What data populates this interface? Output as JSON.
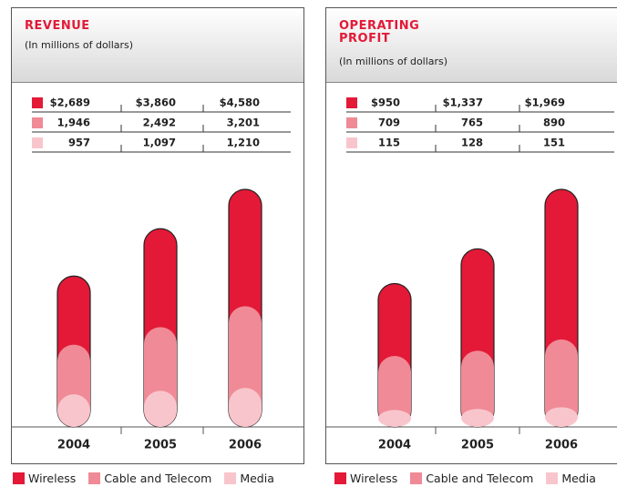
{
  "chart_data": [
    {
      "type": "bar",
      "title": "REVENUE",
      "subtitle": "(In millions of dollars)",
      "categories": [
        "2004",
        "2005",
        "2006"
      ],
      "series": [
        {
          "name": "Wireless",
          "color": "#e31937",
          "values": [
            2689,
            3860,
            4580
          ],
          "value_labels": [
            "$2,689",
            "$3,860",
            "$4,580"
          ]
        },
        {
          "name": "Cable and Telecom",
          "color": "#f08a96",
          "values": [
            1946,
            2492,
            3201
          ],
          "value_labels": [
            "1,946",
            "2,492",
            "3,201"
          ]
        },
        {
          "name": "Media",
          "color": "#f9c5cc",
          "values": [
            957,
            1097,
            1210
          ],
          "value_labels": [
            "957",
            "1,097",
            "1,210"
          ]
        }
      ]
    },
    {
      "type": "bar",
      "title": "OPERATING PROFIT",
      "subtitle": "(In millions of dollars)",
      "categories": [
        "2004",
        "2005",
        "2006"
      ],
      "series": [
        {
          "name": "Wireless",
          "color": "#e31937",
          "values": [
            950,
            1337,
            1969
          ],
          "value_labels": [
            "$950",
            "$1,337",
            "$1,969"
          ]
        },
        {
          "name": "Cable and Telecom",
          "color": "#f08a96",
          "values": [
            709,
            765,
            890
          ],
          "value_labels": [
            "709",
            "765",
            "890"
          ]
        },
        {
          "name": "Media",
          "color": "#f9c5cc",
          "values": [
            115,
            128,
            151
          ],
          "value_labels": [
            "115",
            "128",
            "151"
          ]
        }
      ]
    }
  ]
}
